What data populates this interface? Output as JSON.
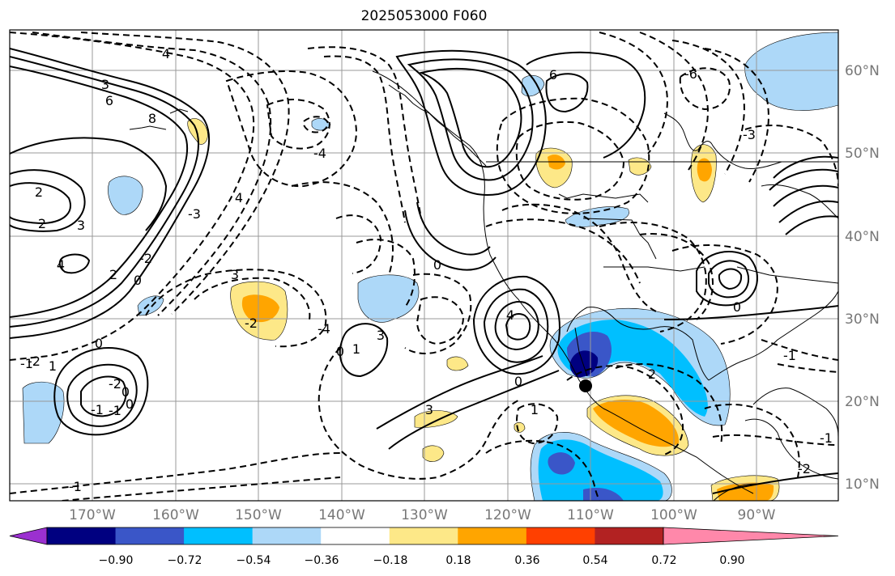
{
  "title": "2025053000 F060",
  "longitude_labels": [
    "170°W",
    "160°W",
    "150°W",
    "140°W",
    "130°W",
    "120°W",
    "110°W",
    "100°W",
    "90°W"
  ],
  "latitude_labels": [
    "60°N",
    "50°N",
    "40°N",
    "30°N",
    "20°N",
    "10°N"
  ],
  "colorbar": {
    "ticks": [
      "−0.90",
      "−0.72",
      "−0.54",
      "−0.36",
      "−0.18",
      "0.18",
      "0.36",
      "0.54",
      "0.72",
      "0.90"
    ],
    "colors": [
      "#9b30d0",
      "#000080",
      "#3a56c8",
      "#00bfff",
      "#add8f8",
      "#ffffff",
      "#fde888",
      "#ffa500",
      "#ff4000",
      "#b22222",
      "#ff88aa"
    ]
  },
  "contour_labels": [
    "4",
    "3",
    "6",
    "8",
    "2",
    "2",
    "3",
    "4",
    "2",
    "0",
    "4",
    "3",
    "-3",
    "-4",
    "-2",
    "0",
    "1",
    "-2",
    "-1",
    "0",
    "-1",
    "-2",
    "0",
    "-1",
    "1",
    "3",
    "-2",
    "-4",
    "6",
    "-6",
    "-3",
    "4",
    "3",
    "0",
    "0",
    "2",
    "-1",
    "1",
    "0",
    "-1",
    "-2",
    "0",
    "-1"
  ]
}
